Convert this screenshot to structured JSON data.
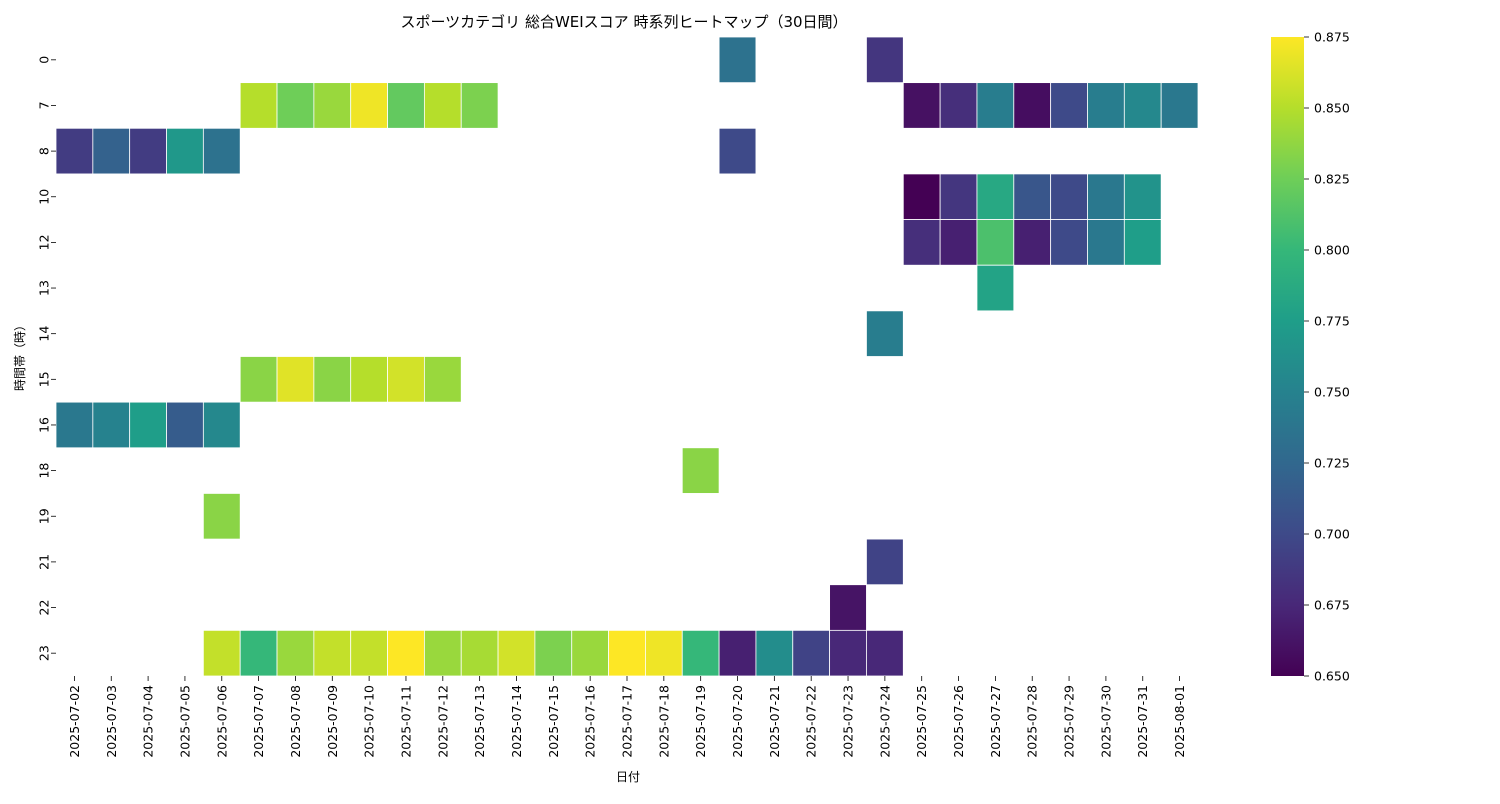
{
  "chart_data": {
    "type": "heatmap",
    "title": "スポーツカテゴリ 総合WEIスコア 時系列ヒートマップ（30日間）",
    "xlabel": "日付",
    "ylabel": "時間帯（時）",
    "x": [
      "2025-07-02",
      "2025-07-03",
      "2025-07-04",
      "2025-07-05",
      "2025-07-06",
      "2025-07-07",
      "2025-07-08",
      "2025-07-09",
      "2025-07-10",
      "2025-07-11",
      "2025-07-12",
      "2025-07-13",
      "2025-07-14",
      "2025-07-15",
      "2025-07-16",
      "2025-07-17",
      "2025-07-18",
      "2025-07-19",
      "2025-07-20",
      "2025-07-21",
      "2025-07-22",
      "2025-07-23",
      "2025-07-24",
      "2025-07-25",
      "2025-07-26",
      "2025-07-27",
      "2025-07-28",
      "2025-07-29",
      "2025-07-30",
      "2025-07-31",
      "2025-08-01"
    ],
    "y": [
      "0",
      "7",
      "8",
      "10",
      "12",
      "13",
      "14",
      "15",
      "16",
      "18",
      "19",
      "21",
      "22",
      "23"
    ],
    "values": [
      [
        null,
        null,
        null,
        null,
        null,
        null,
        null,
        null,
        null,
        null,
        null,
        null,
        null,
        null,
        null,
        null,
        null,
        null,
        0.735,
        null,
        null,
        null,
        0.685,
        null,
        null,
        null,
        null,
        null,
        null,
        null,
        null
      ],
      [
        null,
        null,
        null,
        null,
        null,
        0.85,
        0.825,
        0.84,
        0.87,
        0.82,
        0.85,
        0.83,
        null,
        null,
        null,
        null,
        null,
        null,
        null,
        null,
        null,
        null,
        null,
        0.66,
        0.68,
        0.745,
        0.658,
        0.7,
        0.745,
        0.755,
        0.74
      ],
      [
        0.69,
        0.72,
        0.69,
        0.77,
        0.735,
        null,
        null,
        null,
        null,
        null,
        null,
        null,
        null,
        null,
        null,
        null,
        null,
        null,
        0.7,
        null,
        null,
        null,
        null,
        null,
        null,
        null,
        null,
        null,
        null,
        null,
        null
      ],
      [
        null,
        null,
        null,
        null,
        null,
        null,
        null,
        null,
        null,
        null,
        null,
        null,
        null,
        null,
        null,
        null,
        null,
        null,
        null,
        null,
        null,
        null,
        null,
        0.65,
        0.685,
        0.785,
        0.71,
        0.7,
        0.74,
        0.765,
        null
      ],
      [
        null,
        null,
        null,
        null,
        null,
        null,
        null,
        null,
        null,
        null,
        null,
        null,
        null,
        null,
        null,
        null,
        null,
        null,
        null,
        null,
        null,
        null,
        null,
        0.68,
        0.67,
        0.81,
        0.67,
        0.7,
        0.74,
        0.775,
        null
      ],
      [
        null,
        null,
        null,
        null,
        null,
        null,
        null,
        null,
        null,
        null,
        null,
        null,
        null,
        null,
        null,
        null,
        null,
        null,
        null,
        null,
        null,
        null,
        null,
        null,
        null,
        0.78,
        null,
        null,
        null,
        null,
        null
      ],
      [
        null,
        null,
        null,
        null,
        null,
        null,
        null,
        null,
        null,
        null,
        null,
        null,
        null,
        null,
        null,
        null,
        null,
        null,
        null,
        null,
        null,
        null,
        0.745,
        null,
        null,
        null,
        null,
        null,
        null,
        null,
        null
      ],
      [
        null,
        null,
        null,
        null,
        null,
        0.835,
        0.865,
        0.835,
        0.85,
        0.86,
        0.84,
        null,
        null,
        null,
        null,
        null,
        null,
        null,
        null,
        null,
        null,
        null,
        null,
        null,
        null,
        null,
        null,
        null,
        null,
        null,
        null
      ],
      [
        0.74,
        0.75,
        0.775,
        0.715,
        0.755,
        null,
        null,
        null,
        null,
        null,
        null,
        null,
        null,
        null,
        null,
        null,
        null,
        null,
        null,
        null,
        null,
        null,
        null,
        null,
        null,
        null,
        null,
        null,
        null,
        null,
        null
      ],
      [
        null,
        null,
        null,
        null,
        null,
        null,
        null,
        null,
        null,
        null,
        null,
        null,
        null,
        null,
        null,
        null,
        null,
        0.835,
        null,
        null,
        null,
        null,
        null,
        null,
        null,
        null,
        null,
        null,
        null,
        null,
        null
      ],
      [
        null,
        null,
        null,
        null,
        0.835,
        null,
        null,
        null,
        null,
        null,
        null,
        null,
        null,
        null,
        null,
        null,
        null,
        null,
        null,
        null,
        null,
        null,
        null,
        null,
        null,
        null,
        null,
        null,
        null,
        null,
        null
      ],
      [
        null,
        null,
        null,
        null,
        null,
        null,
        null,
        null,
        null,
        null,
        null,
        null,
        null,
        null,
        null,
        null,
        null,
        null,
        null,
        null,
        null,
        null,
        0.695,
        null,
        null,
        null,
        null,
        null,
        null,
        null,
        null
      ],
      [
        null,
        null,
        null,
        null,
        null,
        null,
        null,
        null,
        null,
        null,
        null,
        null,
        null,
        null,
        null,
        null,
        null,
        null,
        null,
        null,
        null,
        0.662,
        null,
        null,
        null,
        null,
        null,
        null,
        null,
        null,
        null
      ],
      [
        null,
        null,
        null,
        null,
        0.855,
        0.8,
        0.84,
        0.855,
        0.855,
        0.875,
        0.84,
        0.845,
        0.86,
        0.83,
        0.84,
        0.875,
        0.87,
        0.8,
        0.67,
        0.76,
        0.695,
        0.675,
        0.675,
        null,
        null,
        null,
        null,
        null,
        null,
        null,
        null
      ]
    ],
    "colorbar": {
      "colormap": "viridis",
      "range": [
        0.65,
        0.875
      ],
      "ticks": [
        "0.650",
        "0.675",
        "0.700",
        "0.725",
        "0.750",
        "0.775",
        "0.800",
        "0.825",
        "0.850",
        "0.875"
      ]
    },
    "grid": false
  }
}
